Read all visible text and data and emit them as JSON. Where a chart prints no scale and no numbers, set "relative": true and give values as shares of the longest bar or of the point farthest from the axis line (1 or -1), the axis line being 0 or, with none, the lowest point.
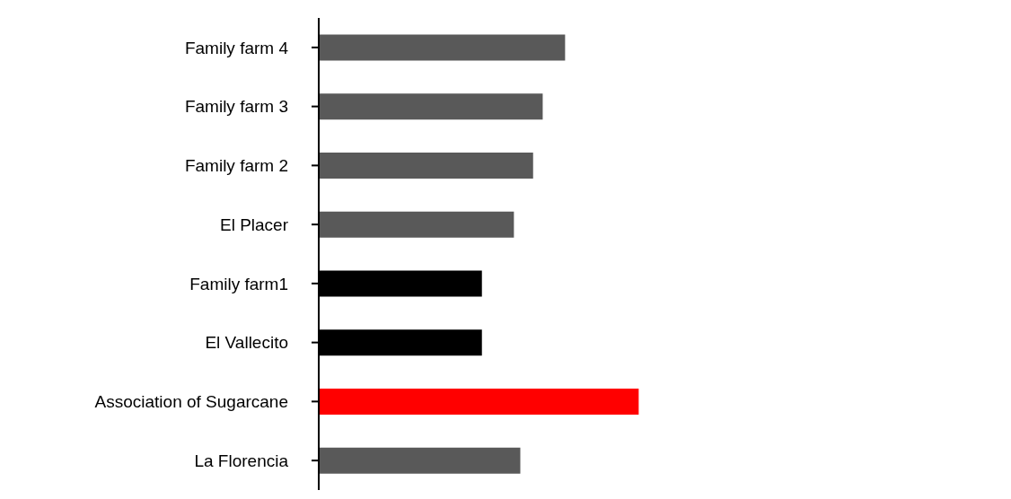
{
  "chart_data": {
    "type": "bar",
    "orientation": "horizontal",
    "relative": true,
    "categories": [
      "Family farm 4",
      "Family farm 3",
      "Family farm 2",
      "El Placer",
      "Family farm1",
      "El Vallecito",
      "Association of Sugarcane",
      "La Florencia"
    ],
    "values": [
      0.77,
      0.7,
      0.67,
      0.61,
      0.51,
      0.51,
      1,
      0.63
    ],
    "colors": [
      "#595959",
      "#595959",
      "#595959",
      "#595959",
      "#000000",
      "#000000",
      "#ff0000",
      "#595959"
    ]
  }
}
